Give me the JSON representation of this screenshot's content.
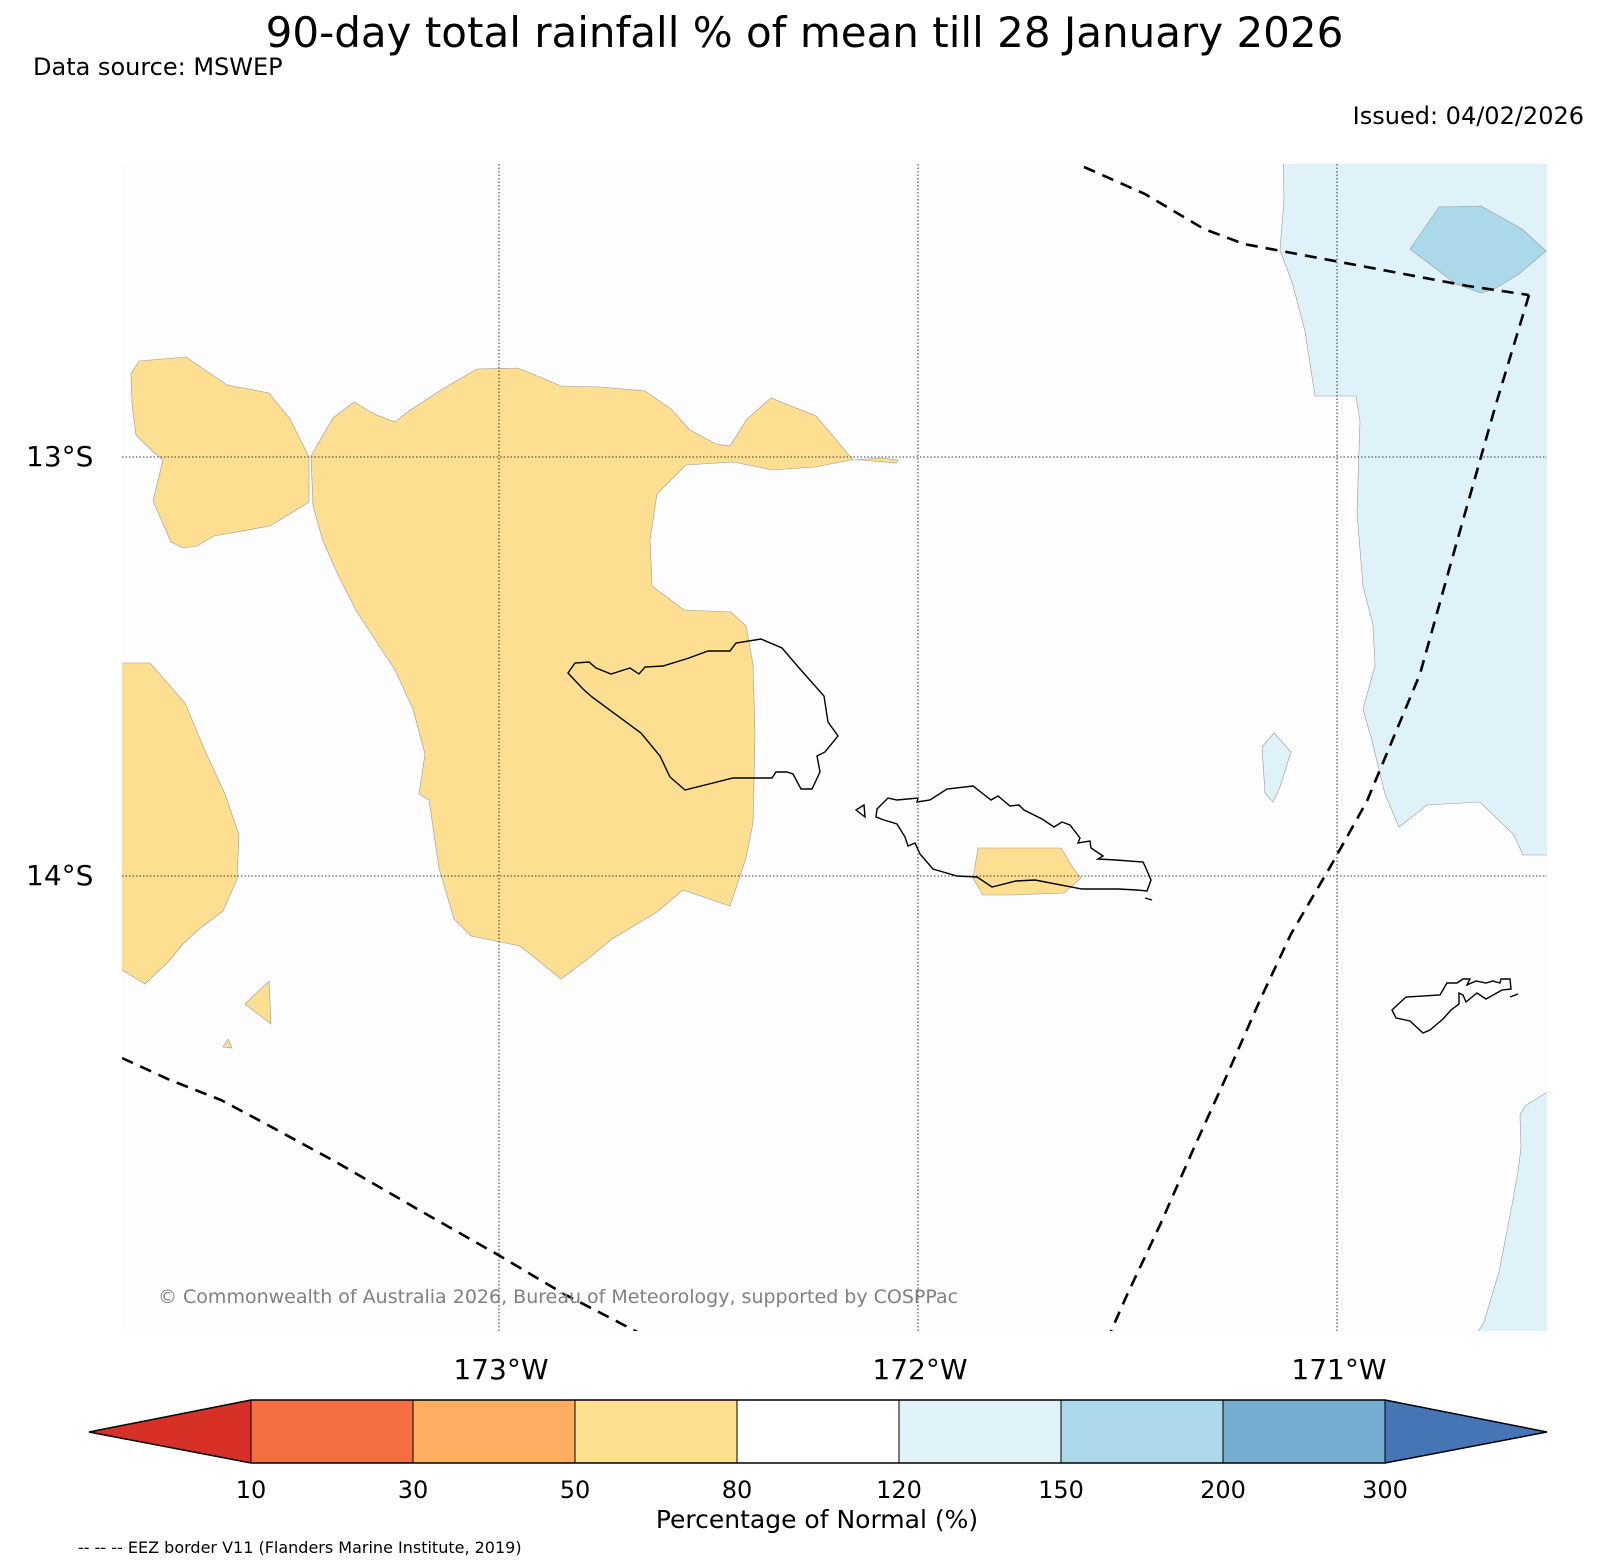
{
  "header": {
    "title": "90-day total rainfall % of mean till 28 January 2026",
    "source": "Data source: MSWEP",
    "issued": "Issued: 04/02/2026"
  },
  "map": {
    "lat_labels": [
      "13°S",
      "14°S"
    ],
    "lon_labels": [
      "173°W",
      "172°W",
      "171°W"
    ],
    "copyright": "© Commonwealth of Australia 2026, Bureau of Meteorology, supported by COSPPac",
    "colors": {
      "ocean": "#fdfdfd",
      "below_50_80": "#fede91",
      "above_120_150": "#e0f2f9",
      "above_150_200": "#abd9e9",
      "coast": "#000000",
      "eez": "#000000"
    }
  },
  "colorbar": {
    "title": "Percentage of Normal (%)",
    "ticks": [
      "10",
      "30",
      "50",
      "80",
      "120",
      "150",
      "200",
      "300"
    ],
    "colors": [
      "#d73027",
      "#f46d43",
      "#fdae61",
      "#fee090",
      "#ffffff",
      "#e0f3f8",
      "#abd9e9",
      "#74add1",
      "#4575b4"
    ]
  },
  "footnote": "-- -- -- EEZ border V11 (Flanders Marine Institute, 2019)"
}
